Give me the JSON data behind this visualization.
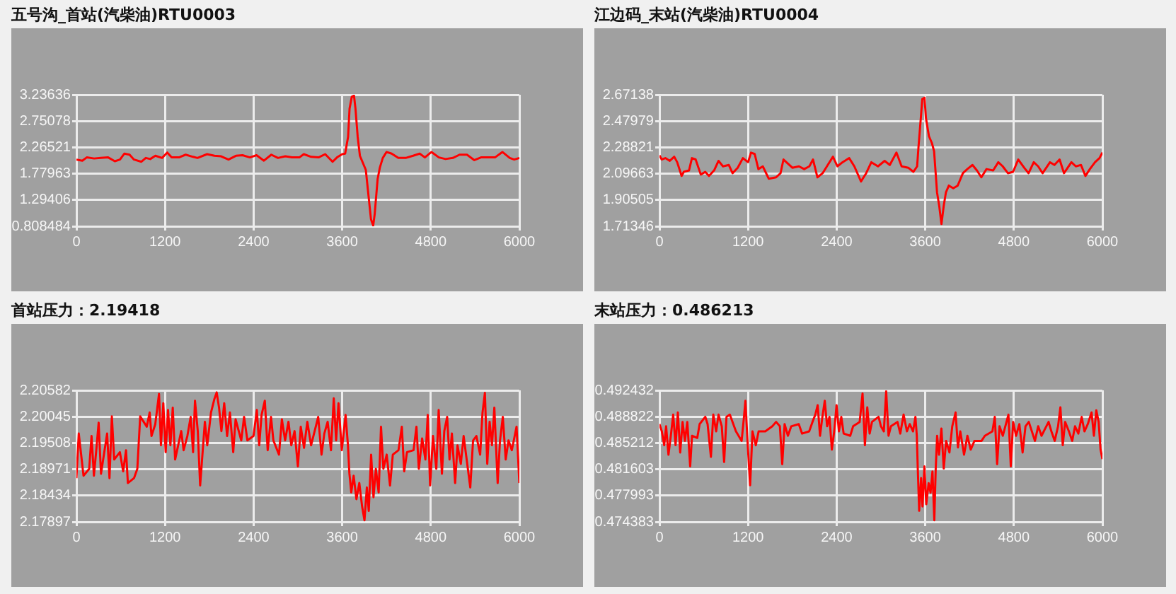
{
  "chart_data": [
    {
      "type": "line",
      "title": "五号沟_首站(汽柴油)RTU0003",
      "color": "#ff0000",
      "grid": true,
      "marker": "none",
      "xlim": [
        0,
        6000
      ],
      "xticks": [
        0,
        1200,
        2400,
        3600,
        4800,
        6000
      ],
      "ylim": [
        0.808484,
        3.23636
      ],
      "yticks": [
        0.808484,
        1.29406,
        1.77963,
        2.26521,
        2.75078,
        3.23636
      ],
      "x": [
        0,
        80,
        140,
        240,
        330,
        430,
        520,
        590,
        650,
        720,
        780,
        880,
        940,
        1000,
        1070,
        1160,
        1230,
        1290,
        1390,
        1480,
        1580,
        1640,
        1770,
        1870,
        1960,
        2060,
        2160,
        2250,
        2350,
        2440,
        2540,
        2640,
        2730,
        2830,
        2920,
        3020,
        3080,
        3180,
        3280,
        3370,
        3470,
        3530,
        3600,
        3640,
        3680,
        3700,
        3730,
        3760,
        3780,
        3810,
        3840,
        3880,
        3920,
        3960,
        3990,
        4020,
        4040,
        4080,
        4110,
        4150,
        4200,
        4270,
        4360,
        4460,
        4560,
        4650,
        4720,
        4810,
        4910,
        5000,
        5100,
        5190,
        5290,
        5390,
        5480,
        5580,
        5670,
        5770,
        5870,
        5930,
        6000
      ],
      "values": [
        2.04,
        2.02,
        2.08,
        2.06,
        2.07,
        2.08,
        2.01,
        2.04,
        2.15,
        2.13,
        2.04,
        2.0,
        2.07,
        2.05,
        2.11,
        2.07,
        2.17,
        2.08,
        2.08,
        2.13,
        2.09,
        2.07,
        2.14,
        2.11,
        2.1,
        2.04,
        2.11,
        2.12,
        2.08,
        2.12,
        2.02,
        2.13,
        2.07,
        2.1,
        2.08,
        2.08,
        2.14,
        2.09,
        2.08,
        2.14,
        2.0,
        2.08,
        2.14,
        2.15,
        2.46,
        2.98,
        3.2,
        3.22,
        2.98,
        2.46,
        2.11,
        1.98,
        1.85,
        1.33,
        0.94,
        0.82,
        1.03,
        1.68,
        1.89,
        2.07,
        2.18,
        2.15,
        2.07,
        2.07,
        2.11,
        2.15,
        2.08,
        2.18,
        2.08,
        2.05,
        2.07,
        2.13,
        2.13,
        2.03,
        2.08,
        2.08,
        2.08,
        2.18,
        2.07,
        2.04,
        2.07
      ]
    },
    {
      "type": "line",
      "title": "江边码_末站(汽柴油)RTU0004",
      "color": "#ff0000",
      "grid": true,
      "marker": "none",
      "xlim": [
        0,
        6000
      ],
      "xticks": [
        0,
        1200,
        2400,
        3600,
        4800,
        6000
      ],
      "ylim": [
        1.71346,
        2.67138
      ],
      "yticks": [
        1.71346,
        1.90505,
        2.09663,
        2.28821,
        2.47979,
        2.67138
      ],
      "x": [
        0,
        30,
        80,
        140,
        200,
        240,
        300,
        330,
        400,
        440,
        490,
        560,
        620,
        670,
        740,
        800,
        860,
        940,
        990,
        1060,
        1130,
        1200,
        1240,
        1290,
        1340,
        1400,
        1480,
        1580,
        1640,
        1680,
        1740,
        1800,
        1890,
        1960,
        2030,
        2080,
        2140,
        2210,
        2280,
        2350,
        2410,
        2480,
        2570,
        2640,
        2730,
        2800,
        2870,
        2960,
        3050,
        3120,
        3210,
        3280,
        3370,
        3440,
        3490,
        3510,
        3540,
        3560,
        3590,
        3610,
        3650,
        3690,
        3720,
        3760,
        3790,
        3820,
        3850,
        3880,
        3920,
        3980,
        4040,
        4110,
        4170,
        4240,
        4300,
        4360,
        4430,
        4520,
        4590,
        4650,
        4720,
        4790,
        4860,
        4940,
        5000,
        5070,
        5130,
        5190,
        5290,
        5350,
        5420,
        5480,
        5580,
        5640,
        5710,
        5770,
        5830,
        5900,
        5960,
        6000
      ],
      "values": [
        2.23,
        2.2,
        2.21,
        2.19,
        2.22,
        2.18,
        2.08,
        2.11,
        2.12,
        2.21,
        2.2,
        2.09,
        2.11,
        2.08,
        2.12,
        2.19,
        2.15,
        2.16,
        2.1,
        2.14,
        2.21,
        2.18,
        2.25,
        2.24,
        2.13,
        2.15,
        2.06,
        2.07,
        2.1,
        2.2,
        2.17,
        2.14,
        2.15,
        2.13,
        2.15,
        2.2,
        2.07,
        2.1,
        2.16,
        2.22,
        2.15,
        2.18,
        2.21,
        2.15,
        2.04,
        2.1,
        2.18,
        2.15,
        2.19,
        2.16,
        2.25,
        2.15,
        2.14,
        2.11,
        2.15,
        2.3,
        2.5,
        2.64,
        2.65,
        2.5,
        2.37,
        2.32,
        2.26,
        1.96,
        1.86,
        1.73,
        1.86,
        1.96,
        2.01,
        1.99,
        2.01,
        2.1,
        2.13,
        2.16,
        2.12,
        2.07,
        2.13,
        2.12,
        2.18,
        2.15,
        2.1,
        2.11,
        2.2,
        2.14,
        2.1,
        2.18,
        2.15,
        2.1,
        2.18,
        2.16,
        2.2,
        2.1,
        2.18,
        2.15,
        2.16,
        2.08,
        2.13,
        2.18,
        2.21,
        2.25
      ]
    },
    {
      "type": "line",
      "title": "首站压力：2.19418",
      "color": "#ff0000",
      "grid": true,
      "marker": "none",
      "xlim": [
        0,
        6000
      ],
      "xticks": [
        0,
        1200,
        2400,
        3600,
        4800,
        6000
      ],
      "ylim": [
        2.17897,
        2.20582
      ],
      "yticks": [
        2.17897,
        2.18434,
        2.18971,
        2.19508,
        2.20045,
        2.20582
      ],
      "x": [
        0,
        32,
        96,
        173,
        205,
        237,
        269,
        301,
        333,
        416,
        448,
        480,
        512,
        589,
        633,
        672,
        697,
        780,
        825,
        864,
        953,
        992,
        1017,
        1068,
        1119,
        1145,
        1177,
        1209,
        1241,
        1273,
        1305,
        1337,
        1420,
        1452,
        1503,
        1548,
        1580,
        1606,
        1644,
        1676,
        1740,
        1772,
        1823,
        1868,
        1900,
        1932,
        1964,
        2002,
        2041,
        2079,
        2124,
        2156,
        2233,
        2271,
        2316,
        2399,
        2444,
        2476,
        2508,
        2552,
        2591,
        2636,
        2668,
        2744,
        2783,
        2827,
        2872,
        2911,
        2955,
        3000,
        3039,
        3083,
        3128,
        3179,
        3275,
        3320,
        3358,
        3403,
        3448,
        3486,
        3518,
        3550,
        3595,
        3646,
        3678,
        3698,
        3723,
        3755,
        3793,
        3832,
        3870,
        3902,
        3934,
        3960,
        3992,
        4024,
        4056,
        4094,
        4126,
        4158,
        4203,
        4248,
        4286,
        4363,
        4408,
        4440,
        4478,
        4567,
        4606,
        4638,
        4683,
        4727,
        4759,
        4791,
        4830,
        4875,
        4907,
        4951,
        4983,
        5022,
        5054,
        5086,
        5130,
        5162,
        5207,
        5245,
        5335,
        5373,
        5418,
        5469,
        5501,
        5533,
        5565,
        5597,
        5629,
        5661,
        5706,
        5738,
        5776,
        5815,
        5853,
        5898,
        5930,
        5962,
        6000
      ],
      "values": [
        2.1879,
        2.197,
        2.1884,
        2.1898,
        2.1965,
        2.1884,
        2.1936,
        2.1992,
        2.1888,
        2.197,
        2.1879,
        2.2005,
        2.1917,
        2.1932,
        2.1893,
        2.1936,
        2.1869,
        2.1879,
        2.1898,
        2.2005,
        2.1984,
        2.2013,
        2.1965,
        2.1989,
        2.2051,
        2.1946,
        2.2032,
        2.1932,
        2.2018,
        2.1946,
        2.2023,
        2.1917,
        2.1975,
        2.1936,
        2.1965,
        2.2004,
        2.1932,
        2.2037,
        2.1975,
        2.1864,
        2.1994,
        2.1946,
        2.2013,
        2.204,
        2.2054,
        2.2023,
        2.1975,
        2.2032,
        2.1965,
        2.2013,
        2.1932,
        2.1999,
        2.1956,
        2.2004,
        2.1956,
        2.1965,
        2.2018,
        2.1946,
        2.2008,
        2.2037,
        2.1936,
        2.2004,
        2.1956,
        2.1927,
        2.1999,
        2.1956,
        2.1994,
        2.1946,
        2.1975,
        2.1903,
        2.1984,
        2.1941,
        2.1994,
        2.1946,
        2.2004,
        2.1927,
        2.197,
        2.1994,
        2.1936,
        2.2042,
        2.1956,
        2.2032,
        2.1936,
        2.2008,
        2.1946,
        2.1888,
        2.185,
        2.1884,
        2.1836,
        2.1869,
        2.1821,
        2.1793,
        2.186,
        2.1812,
        2.1927,
        2.184,
        2.1898,
        2.185,
        2.1984,
        2.1898,
        2.1927,
        2.1864,
        2.1927,
        2.1936,
        2.1984,
        2.1893,
        2.1932,
        2.1936,
        2.1984,
        2.1898,
        2.196,
        2.1917,
        2.2008,
        2.1864,
        2.1965,
        2.1898,
        2.2018,
        2.1888,
        2.1975,
        2.2004,
        2.1917,
        2.197,
        2.1869,
        2.1946,
        2.1908,
        2.1965,
        2.186,
        2.1956,
        2.1965,
        2.1927,
        2.2013,
        2.2053,
        2.1908,
        2.1994,
        2.1946,
        2.2023,
        2.1869,
        2.1956,
        2.2004,
        2.1917,
        2.1956,
        2.1936,
        2.196,
        2.1984,
        2.1869
      ]
    },
    {
      "type": "line",
      "title": "末站压力：0.486213",
      "color": "#ff0000",
      "grid": true,
      "marker": "none",
      "xlim": [
        0,
        6000
      ],
      "xticks": [
        0,
        1200,
        2400,
        3600,
        4800,
        6000
      ],
      "ylim": [
        0.474383,
        0.492432
      ],
      "yticks": [
        0.474383,
        0.477993,
        0.481603,
        0.485212,
        0.488822,
        0.492432
      ],
      "x": [
        0,
        32,
        64,
        90,
        122,
        154,
        186,
        218,
        249,
        281,
        313,
        345,
        377,
        416,
        441,
        512,
        544,
        621,
        652,
        697,
        729,
        768,
        800,
        844,
        876,
        908,
        953,
        1036,
        1113,
        1145,
        1164,
        1196,
        1228,
        1260,
        1305,
        1343,
        1433,
        1529,
        1580,
        1631,
        1663,
        1695,
        1740,
        1785,
        1887,
        1932,
        2028,
        2073,
        2111,
        2143,
        2175,
        2207,
        2239,
        2271,
        2303,
        2335,
        2367,
        2399,
        2431,
        2463,
        2495,
        2584,
        2623,
        2712,
        2751,
        2783,
        2815,
        2847,
        2879,
        2968,
        3000,
        3039,
        3071,
        3103,
        3135,
        3224,
        3262,
        3307,
        3352,
        3390,
        3435,
        3467,
        3486,
        3499,
        3518,
        3544,
        3563,
        3589,
        3614,
        3646,
        3672,
        3698,
        3723,
        3742,
        3761,
        3787,
        3819,
        3851,
        3883,
        3928,
        3966,
        4011,
        4043,
        4075,
        4126,
        4171,
        4216,
        4267,
        4363,
        4408,
        4510,
        4542,
        4574,
        4606,
        4651,
        4727,
        4759,
        4791,
        4830,
        4875,
        4919,
        4958,
        5003,
        5086,
        5130,
        5175,
        5271,
        5309,
        5354,
        5399,
        5431,
        5463,
        5495,
        5546,
        5591,
        5629,
        5674,
        5719,
        5757,
        5802,
        5853,
        5885,
        5917,
        5949,
        5975,
        6000
      ],
      "values": [
        0.4878,
        0.4868,
        0.4849,
        0.4875,
        0.4836,
        0.4862,
        0.4891,
        0.4849,
        0.4894,
        0.4839,
        0.4881,
        0.4855,
        0.4881,
        0.482,
        0.4862,
        0.4859,
        0.4878,
        0.4888,
        0.4878,
        0.4833,
        0.4891,
        0.4868,
        0.4891,
        0.4875,
        0.4826,
        0.4888,
        0.4891,
        0.4868,
        0.4855,
        0.4888,
        0.491,
        0.4849,
        0.4794,
        0.4868,
        0.4849,
        0.4868,
        0.4868,
        0.4875,
        0.4881,
        0.4875,
        0.4823,
        0.4878,
        0.4862,
        0.4875,
        0.4878,
        0.4865,
        0.4868,
        0.4881,
        0.4891,
        0.4904,
        0.4862,
        0.4888,
        0.491,
        0.4875,
        0.4888,
        0.4843,
        0.4868,
        0.4904,
        0.4868,
        0.4888,
        0.4865,
        0.4862,
        0.4875,
        0.4881,
        0.492,
        0.4849,
        0.4901,
        0.4865,
        0.4881,
        0.4888,
        0.4875,
        0.4868,
        0.4923,
        0.4862,
        0.4875,
        0.4881,
        0.4865,
        0.4891,
        0.4868,
        0.4878,
        0.4868,
        0.4888,
        0.4862,
        0.4817,
        0.4759,
        0.4804,
        0.4765,
        0.482,
        0.4768,
        0.4797,
        0.4784,
        0.4813,
        0.4746,
        0.4817,
        0.4862,
        0.4836,
        0.4872,
        0.4817,
        0.4855,
        0.4839,
        0.4875,
        0.4894,
        0.4846,
        0.4868,
        0.4836,
        0.4862,
        0.4843,
        0.4855,
        0.4855,
        0.4862,
        0.4868,
        0.4888,
        0.4823,
        0.4875,
        0.4862,
        0.4891,
        0.482,
        0.4881,
        0.4862,
        0.4878,
        0.4839,
        0.4875,
        0.4881,
        0.4855,
        0.4875,
        0.4862,
        0.4881,
        0.4868,
        0.4855,
        0.4875,
        0.4901,
        0.4849,
        0.4881,
        0.4868,
        0.4855,
        0.4875,
        0.4865,
        0.4888,
        0.4868,
        0.4878,
        0.4894,
        0.4862,
        0.4897,
        0.4881,
        0.4843,
        0.483
      ]
    }
  ]
}
